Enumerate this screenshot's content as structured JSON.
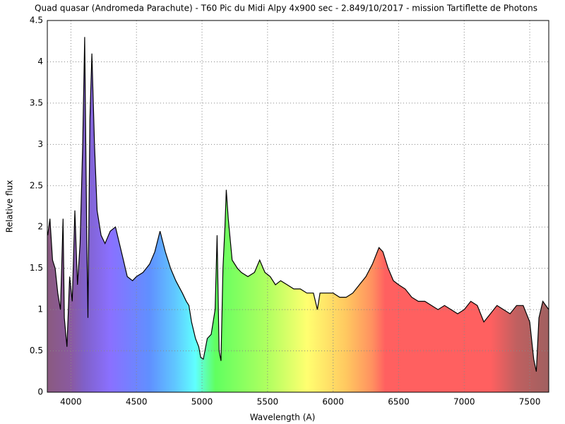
{
  "chart_data": {
    "type": "area",
    "title": "Quad quasar (Andromeda Parachute) - T60 Pic du Midi Alpy 4x900 sec - 2.849/10/2017 - mission Tartiflette de Photons",
    "x_label": "Wavelength (A)",
    "y_label": "Relative flux",
    "x": [
      3823,
      3840,
      3860,
      3880,
      3900,
      3920,
      3940,
      3950,
      3970,
      3990,
      4010,
      4030,
      4050,
      4070,
      4090,
      4105,
      4120,
      4130,
      4145,
      4160,
      4180,
      4200,
      4230,
      4260,
      4300,
      4340,
      4370,
      4400,
      4430,
      4470,
      4500,
      4550,
      4600,
      4640,
      4680,
      4720,
      4760,
      4800,
      4850,
      4880,
      4900,
      4920,
      4950,
      4975,
      4990,
      5010,
      5040,
      5070,
      5100,
      5115,
      5130,
      5145,
      5160,
      5175,
      5185,
      5200,
      5230,
      5270,
      5300,
      5350,
      5400,
      5440,
      5480,
      5520,
      5560,
      5600,
      5650,
      5700,
      5750,
      5800,
      5850,
      5880,
      5900,
      5950,
      6000,
      6050,
      6100,
      6150,
      6200,
      6250,
      6300,
      6350,
      6380,
      6420,
      6460,
      6500,
      6550,
      6600,
      6650,
      6700,
      6750,
      6800,
      6850,
      6900,
      6950,
      7000,
      7050,
      7100,
      7150,
      7200,
      7250,
      7300,
      7350,
      7400,
      7450,
      7500,
      7530,
      7550,
      7570,
      7600,
      7645
    ],
    "values": [
      1.9,
      2.1,
      1.6,
      1.5,
      1.2,
      1.0,
      2.1,
      0.9,
      0.55,
      1.4,
      1.1,
      2.2,
      1.3,
      1.8,
      3.0,
      4.3,
      2.0,
      0.9,
      3.3,
      4.1,
      3.0,
      2.2,
      1.9,
      1.8,
      1.95,
      2.0,
      1.8,
      1.6,
      1.4,
      1.35,
      1.4,
      1.45,
      1.55,
      1.7,
      1.95,
      1.7,
      1.5,
      1.35,
      1.2,
      1.1,
      1.05,
      0.85,
      0.65,
      0.55,
      0.42,
      0.4,
      0.65,
      0.7,
      1.0,
      1.9,
      0.5,
      0.38,
      1.5,
      2.0,
      2.45,
      2.1,
      1.6,
      1.5,
      1.45,
      1.4,
      1.45,
      1.6,
      1.45,
      1.4,
      1.3,
      1.35,
      1.3,
      1.25,
      1.25,
      1.2,
      1.2,
      1.0,
      1.2,
      1.2,
      1.2,
      1.15,
      1.15,
      1.2,
      1.3,
      1.4,
      1.55,
      1.75,
      1.7,
      1.5,
      1.35,
      1.3,
      1.25,
      1.15,
      1.1,
      1.1,
      1.05,
      1.0,
      1.05,
      1.0,
      0.95,
      1.0,
      1.1,
      1.05,
      0.85,
      0.95,
      1.05,
      1.0,
      0.95,
      1.05,
      1.05,
      0.85,
      0.4,
      0.25,
      0.9,
      1.1,
      1.0
    ],
    "color": "#000000",
    "xlim": [
      3820,
      7645
    ],
    "ylim": [
      0,
      4.5
    ],
    "xticks": [
      4000,
      4500,
      5000,
      5500,
      6000,
      6500,
      7000,
      7500
    ],
    "yticks": [
      0,
      0.5,
      1,
      1.5,
      2,
      2.5,
      3,
      3.5,
      4,
      4.5
    ],
    "grid": true
  }
}
